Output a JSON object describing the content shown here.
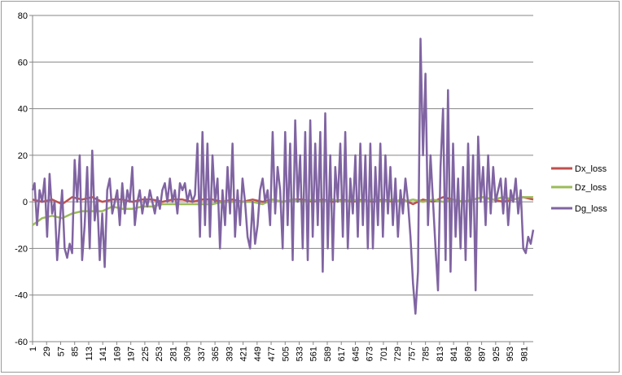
{
  "chart_data": {
    "type": "line",
    "title": "",
    "xlabel": "",
    "ylabel": "",
    "ylim": [
      -60,
      80
    ],
    "yticks": [
      -60,
      -40,
      -20,
      0,
      20,
      40,
      60,
      80
    ],
    "xlim": [
      1,
      1000
    ],
    "xticks": [
      1,
      29,
      57,
      85,
      113,
      141,
      169,
      197,
      225,
      253,
      281,
      309,
      337,
      365,
      393,
      421,
      449,
      477,
      505,
      533,
      561,
      589,
      617,
      645,
      673,
      701,
      729,
      757,
      785,
      813,
      841,
      869,
      897,
      925,
      953,
      981
    ],
    "grid": "horizontal",
    "legend_position": "right",
    "series": [
      {
        "name": "Dx_loss",
        "color": "#c0504d",
        "x": [
          1,
          20,
          40,
          60,
          80,
          100,
          120,
          140,
          160,
          180,
          200,
          220,
          240,
          260,
          280,
          300,
          320,
          340,
          360,
          380,
          400,
          420,
          440,
          460,
          480,
          500,
          520,
          540,
          560,
          580,
          600,
          620,
          640,
          660,
          680,
          700,
          720,
          740,
          760,
          780,
          800,
          820,
          840,
          860,
          880,
          900,
          920,
          940,
          960,
          980,
          1000
        ],
        "y": [
          1,
          0,
          1,
          -1,
          2,
          1,
          2,
          0,
          1,
          1,
          0,
          1,
          1,
          0,
          1,
          1,
          0,
          1,
          1,
          0,
          1,
          0,
          1,
          0,
          1,
          0,
          1,
          1,
          0,
          1,
          0,
          1,
          0,
          1,
          0,
          1,
          0,
          1,
          -1,
          1,
          0,
          2,
          1,
          0,
          1,
          2,
          1,
          0,
          1,
          2,
          1
        ]
      },
      {
        "name": "Dz_loss",
        "color": "#9bbb59",
        "x": [
          1,
          20,
          40,
          60,
          80,
          100,
          120,
          140,
          160,
          180,
          200,
          220,
          240,
          260,
          280,
          300,
          320,
          340,
          360,
          380,
          400,
          420,
          440,
          460,
          480,
          500,
          520,
          540,
          560,
          580,
          600,
          620,
          640,
          660,
          680,
          700,
          720,
          740,
          760,
          780,
          800,
          820,
          840,
          860,
          880,
          900,
          920,
          940,
          960,
          980,
          1000
        ],
        "y": [
          -10,
          -7,
          -6,
          -7,
          -5,
          -4,
          -4,
          -4,
          -2,
          -3,
          -3,
          -2,
          -2,
          -1,
          -1,
          -1,
          -1,
          -1,
          -1,
          0,
          0,
          0,
          0,
          -1,
          1,
          0,
          1,
          0,
          1,
          0,
          1,
          0,
          1,
          0,
          1,
          0,
          1,
          0,
          1,
          0,
          1,
          0,
          1,
          0,
          1,
          2,
          1,
          2,
          1,
          2,
          2
        ]
      },
      {
        "name": "Dg_loss",
        "color": "#8064a2",
        "x": [
          1,
          5,
          10,
          15,
          20,
          25,
          30,
          35,
          40,
          45,
          50,
          55,
          60,
          65,
          70,
          75,
          80,
          85,
          90,
          95,
          100,
          105,
          110,
          115,
          120,
          125,
          130,
          135,
          140,
          145,
          150,
          155,
          160,
          165,
          170,
          175,
          180,
          185,
          190,
          195,
          200,
          205,
          210,
          215,
          220,
          225,
          230,
          235,
          240,
          245,
          250,
          255,
          260,
          265,
          270,
          275,
          280,
          285,
          290,
          295,
          300,
          305,
          310,
          315,
          320,
          325,
          330,
          335,
          340,
          345,
          350,
          355,
          360,
          365,
          370,
          375,
          380,
          385,
          390,
          395,
          400,
          405,
          410,
          415,
          420,
          425,
          430,
          435,
          440,
          445,
          450,
          455,
          460,
          465,
          470,
          475,
          480,
          485,
          490,
          495,
          500,
          505,
          510,
          515,
          520,
          525,
          530,
          535,
          540,
          545,
          550,
          555,
          560,
          565,
          570,
          575,
          580,
          585,
          590,
          595,
          600,
          605,
          610,
          615,
          620,
          625,
          630,
          635,
          640,
          645,
          650,
          655,
          660,
          665,
          670,
          675,
          680,
          685,
          690,
          695,
          700,
          705,
          710,
          715,
          720,
          725,
          730,
          735,
          740,
          745,
          750,
          755,
          760,
          765,
          770,
          775,
          780,
          785,
          790,
          795,
          800,
          805,
          810,
          815,
          820,
          825,
          830,
          835,
          840,
          845,
          850,
          855,
          860,
          865,
          870,
          875,
          880,
          885,
          890,
          895,
          900,
          905,
          910,
          915,
          920,
          925,
          930,
          935,
          940,
          945,
          950,
          955,
          960,
          965,
          970,
          975,
          980,
          985,
          990,
          995,
          1000
        ],
        "y": [
          5,
          8,
          -10,
          5,
          0,
          10,
          -15,
          12,
          -5,
          0,
          -25,
          -10,
          5,
          -20,
          -24,
          -18,
          -22,
          18,
          0,
          20,
          -25,
          -10,
          15,
          -20,
          22,
          -8,
          2,
          -25,
          -5,
          -28,
          5,
          10,
          -5,
          0,
          5,
          -10,
          8,
          -5,
          5,
          0,
          15,
          -10,
          0,
          5,
          -5,
          2,
          -2,
          5,
          0,
          -5,
          2,
          -3,
          5,
          8,
          0,
          10,
          0,
          5,
          -5,
          8,
          5,
          8,
          0,
          5,
          0,
          3,
          25,
          -15,
          30,
          -10,
          25,
          -15,
          20,
          0,
          10,
          -20,
          5,
          -10,
          15,
          -5,
          25,
          -15,
          5,
          -10,
          10,
          0,
          -15,
          -20,
          0,
          -18,
          -10,
          5,
          10,
          0,
          5,
          -10,
          30,
          -5,
          15,
          5,
          -20,
          30,
          -10,
          25,
          -25,
          35,
          0,
          20,
          -20,
          30,
          -25,
          35,
          -15,
          25,
          -10,
          30,
          -30,
          38,
          -20,
          20,
          -25,
          15,
          0,
          25,
          -15,
          30,
          -20,
          10,
          -5,
          20,
          -15,
          25,
          -10,
          20,
          -20,
          25,
          -20,
          15,
          -10,
          25,
          -15,
          20,
          -5,
          15,
          -10,
          10,
          -15,
          5,
          -5,
          10,
          0,
          -15,
          -35,
          -48,
          -30,
          70,
          20,
          55,
          -10,
          20,
          0,
          -20,
          -38,
          15,
          40,
          -25,
          48,
          -30,
          25,
          -15,
          10,
          -20,
          15,
          -25,
          25,
          -15,
          20,
          -38,
          28,
          0,
          15,
          -10,
          20,
          -5,
          15,
          0,
          5,
          10,
          -5,
          10,
          -10,
          5,
          0,
          10,
          -5,
          5,
          -20,
          -22,
          -15,
          -18,
          -12
        ]
      }
    ]
  }
}
